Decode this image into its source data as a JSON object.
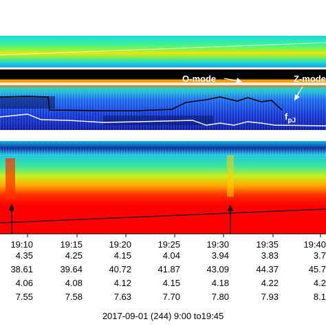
{
  "chart_data": {
    "type": "heatmap",
    "colormap": [
      "#00007f",
      "#0050ff",
      "#00c8ff",
      "#3cff7a",
      "#e8f000",
      "#ff8c00",
      "#ff0000"
    ],
    "time_ticks": [
      "19:10",
      "19:15",
      "19:20",
      "19:25",
      "19:30",
      "19:35",
      "19:40"
    ],
    "ephemeris_rows": [
      [
        "4.35",
        "4.25",
        "4.15",
        "4.04",
        "3.94",
        "3.83",
        "3.7"
      ],
      [
        "38.61",
        "39.64",
        "40.72",
        "41.87",
        "43.09",
        "44.37",
        "45.7"
      ],
      [
        "4.06",
        "4.08",
        "4.12",
        "4.15",
        "4.18",
        "4.22",
        "4.2"
      ],
      [
        "7.55",
        "7.58",
        "7.63",
        "7.70",
        "7.80",
        "7.93",
        "8.1"
      ]
    ],
    "annotations": {
      "o_mode": "O-mode",
      "z_mode": "Z-mode",
      "fpj_main": "f",
      "fpj_sub": "pJ"
    },
    "caption": "2017-09-01 (244) 9:00 to19:45"
  }
}
